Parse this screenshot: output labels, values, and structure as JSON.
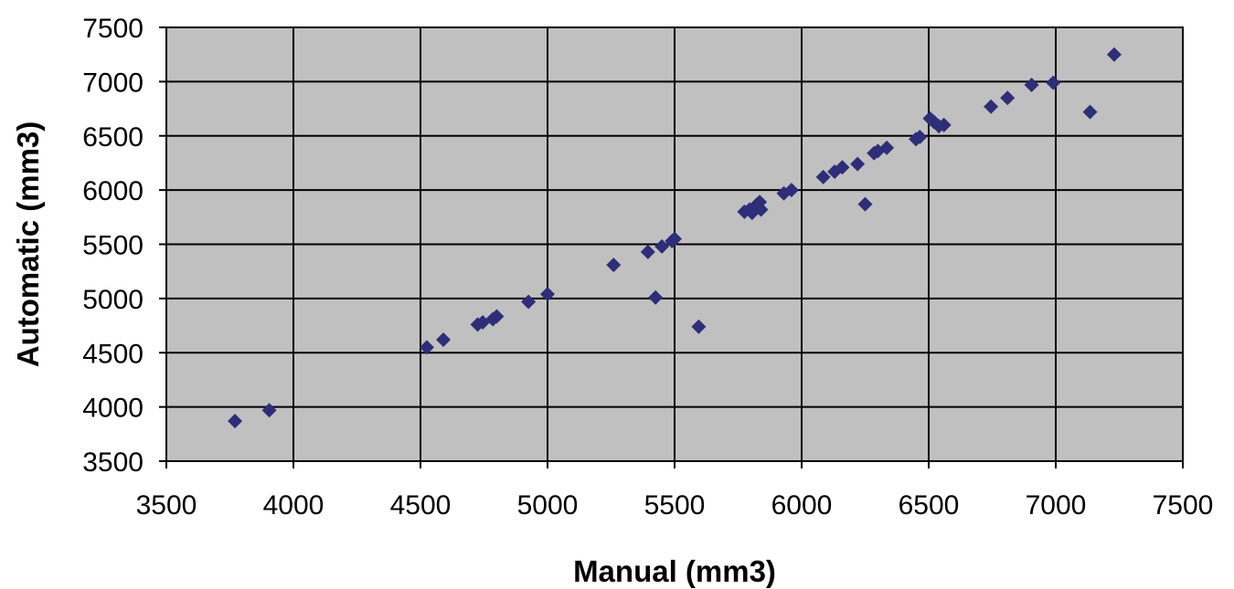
{
  "chart_data": {
    "type": "scatter",
    "title": "",
    "xlabel": "Manual (mm3)",
    "ylabel": "Automatic (mm3)",
    "xlim": [
      3500,
      7500
    ],
    "ylim": [
      3500,
      7500
    ],
    "x_ticks": [
      "3500",
      "4000",
      "4500",
      "5000",
      "5500",
      "6000",
      "6500",
      "7000",
      "7500"
    ],
    "y_ticks": [
      "3500",
      "4000",
      "4500",
      "5000",
      "5500",
      "6000",
      "6500",
      "7000",
      "7500"
    ],
    "grid": true,
    "legend": "none",
    "colors": {
      "plot_background": "#c0c0c0",
      "marker": "#2e2e78",
      "grid": "#000000"
    },
    "marker_shape": "diamond",
    "points": [
      {
        "x": 3770,
        "y": 3870
      },
      {
        "x": 3905,
        "y": 3970
      },
      {
        "x": 4525,
        "y": 4550
      },
      {
        "x": 4590,
        "y": 4620
      },
      {
        "x": 4725,
        "y": 4760
      },
      {
        "x": 4745,
        "y": 4780
      },
      {
        "x": 4785,
        "y": 4810
      },
      {
        "x": 4800,
        "y": 4835
      },
      {
        "x": 4925,
        "y": 4970
      },
      {
        "x": 5000,
        "y": 5040
      },
      {
        "x": 5260,
        "y": 5310
      },
      {
        "x": 5395,
        "y": 5430
      },
      {
        "x": 5425,
        "y": 5010
      },
      {
        "x": 5450,
        "y": 5480
      },
      {
        "x": 5490,
        "y": 5530
      },
      {
        "x": 5500,
        "y": 5550
      },
      {
        "x": 5595,
        "y": 4740
      },
      {
        "x": 5775,
        "y": 5800
      },
      {
        "x": 5795,
        "y": 5820
      },
      {
        "x": 5805,
        "y": 5790
      },
      {
        "x": 5815,
        "y": 5840
      },
      {
        "x": 5825,
        "y": 5870
      },
      {
        "x": 5835,
        "y": 5890
      },
      {
        "x": 5840,
        "y": 5820
      },
      {
        "x": 5930,
        "y": 5970
      },
      {
        "x": 5960,
        "y": 6000
      },
      {
        "x": 6085,
        "y": 6120
      },
      {
        "x": 6130,
        "y": 6170
      },
      {
        "x": 6160,
        "y": 6210
      },
      {
        "x": 6220,
        "y": 6240
      },
      {
        "x": 6250,
        "y": 5870
      },
      {
        "x": 6285,
        "y": 6340
      },
      {
        "x": 6300,
        "y": 6360
      },
      {
        "x": 6335,
        "y": 6390
      },
      {
        "x": 6450,
        "y": 6470
      },
      {
        "x": 6465,
        "y": 6490
      },
      {
        "x": 6505,
        "y": 6660
      },
      {
        "x": 6520,
        "y": 6630
      },
      {
        "x": 6540,
        "y": 6590
      },
      {
        "x": 6560,
        "y": 6600
      },
      {
        "x": 6745,
        "y": 6770
      },
      {
        "x": 6810,
        "y": 6850
      },
      {
        "x": 6905,
        "y": 6970
      },
      {
        "x": 6990,
        "y": 6990
      },
      {
        "x": 7135,
        "y": 6720
      },
      {
        "x": 7230,
        "y": 7250
      }
    ]
  }
}
